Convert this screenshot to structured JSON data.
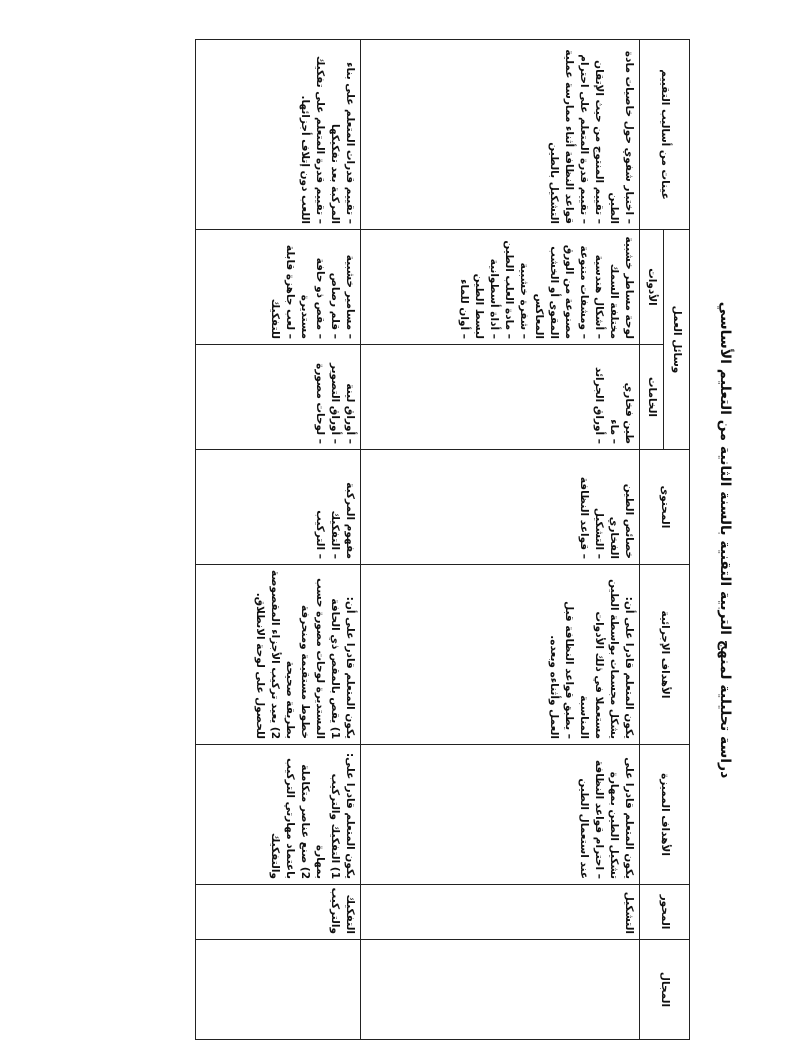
{
  "title": "دراسة تحليلية لمنهج التربية التقنية بالسنة الثانية من التعليم الأساسي",
  "headers": {
    "domain": "المجال",
    "axis": "المحور",
    "distinct_objectives": "الأهداف المميزة",
    "procedural_objectives": "الأهداف الإجرائية",
    "content": "المحتوى",
    "work_means": "وسائل العمل",
    "materials": "الخامات",
    "tools": "الأدوات",
    "assessment": "عينات من أساليب التقييم"
  },
  "rows": [
    {
      "domain": "",
      "axis": "التشكيل",
      "distinct_objectives": [
        "يكون المتعلم قادرا على تشكيل الطين بمهارة",
        "– احترام قواعد النظافة عند استعمال الطين"
      ],
      "procedural_objectives": [
        "يكون المتعلم قادرا على أن:",
        "يشكل مجسمات بواسطة الطين مستعملا في ذلك الأدوات المناسبة",
        "– يطبق قواعد النظافة قبل العمل وأثناءه وبعده."
      ],
      "content": [
        "خصائص الطين الفخاري",
        "– التشكيل",
        "– قواعد النظافة"
      ],
      "materials": [
        "طين فخاري",
        "– ماء",
        "– أوراق الجرائد"
      ],
      "tools": [
        "لوحة مساطر خشبية مختلفة السمك",
        "– أشكال هندسية",
        "– ومشفات متنوعة مصنوعة من الورق المقوى أو الخشب المعاكس",
        "– شفرة خشبية",
        "– مادة العلب الطين",
        "– أداة أسطوانية لبسط الطين",
        "– أوان للماء"
      ],
      "assessment": [
        "– اختبار شفوي حول خاصيات مادة الطين",
        "– تقييم المنتوج من حيث الإتقان",
        "– تقييم قدرة المتعلم على احترام قواعد النظافة أثناء ممارسة عملية التشكيل بالطين"
      ]
    },
    {
      "domain": "",
      "axis": "التفكيك والتركيب",
      "distinct_objectives": [
        "يكون المتعلم قادرا على:",
        "1) التفكيك والتركيب بمهارة",
        "2) صنع عناصر متكاملة باعتماد مهارتي التركيب والتفكيك"
      ],
      "procedural_objectives": [
        "يكون المتعلم قادرا على أن:",
        "1) يقص بالمقص ذي الحافة المستديرة لوحات مصورة حسب خطوط مستقيمة ومنحرفة بطريقة صحيحة",
        "2) يعيد تركيب الأجزاء المقصوصة للحصول على لوحة الانطلاق."
      ],
      "content": [
        "مفهوم المركبة",
        "– التفكيك",
        "– التركيب"
      ],
      "materials": [
        "– أوراق لينة",
        "– أوراق التصوير",
        "– لوحات مصورة"
      ],
      "tools": [
        "– مسامير خشبية",
        "– قلم رصاص",
        "– مقص ذو حافة مستديرة",
        "– لعب جاهزة قابلة للتفكيك"
      ],
      "assessment": [
        "– تقييم قدرات المتعلم على بناء المركبة بعد تفكيكها",
        "– تقييم قدرة المتعلم على تفكيك اللعب دون إتلاف أجزائها."
      ]
    }
  ]
}
